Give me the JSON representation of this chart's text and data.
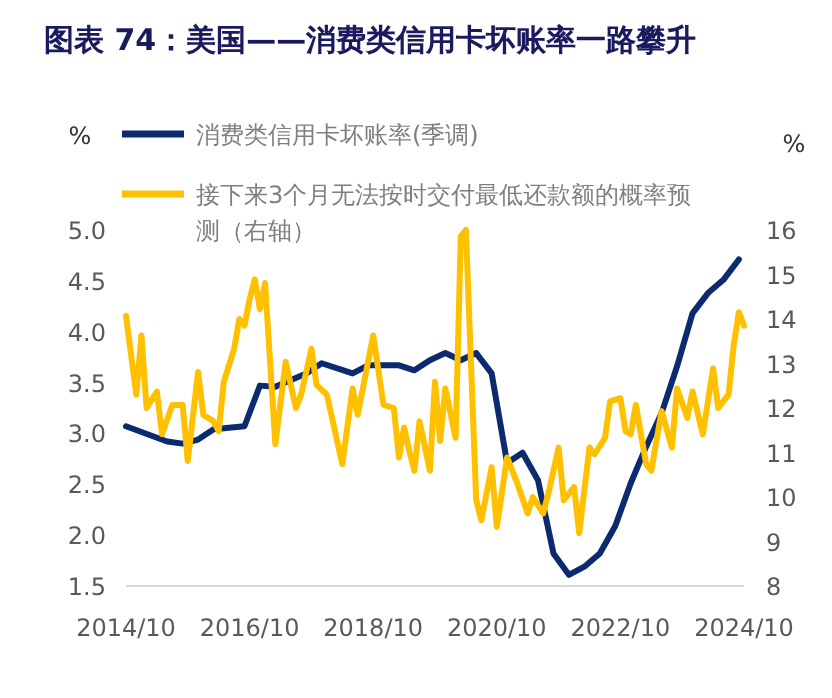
{
  "chart_data": {
    "type": "line",
    "title": "图表 74：美国——消费类信用卡坏账率一路攀升",
    "ylabel": "%",
    "y2label": "%",
    "legend": "top",
    "xlim": [
      "2014-10",
      "2024-10"
    ],
    "xticks": [
      {
        "value": "2014-10",
        "label": "2014/10"
      },
      {
        "value": "2016-10",
        "label": "2016/10"
      },
      {
        "value": "2018-10",
        "label": "2018/10"
      },
      {
        "value": "2020-10",
        "label": "2020/10"
      },
      {
        "value": "2022-10",
        "label": "2022/10"
      },
      {
        "value": "2024-10",
        "label": "2024/10"
      }
    ],
    "ylim": [
      1.5,
      5.0
    ],
    "yticks": [
      {
        "value": 1.5,
        "label": "1.5"
      },
      {
        "value": 2.0,
        "label": "2.0"
      },
      {
        "value": 2.5,
        "label": "2.5"
      },
      {
        "value": 3.0,
        "label": "3.0"
      },
      {
        "value": 3.5,
        "label": "3.5"
      },
      {
        "value": 4.0,
        "label": "4.0"
      },
      {
        "value": 4.5,
        "label": "4.5"
      },
      {
        "value": 5.0,
        "label": "5.0"
      }
    ],
    "y2lim": [
      8,
      16
    ],
    "y2ticks": [
      8,
      9,
      10,
      11,
      12,
      13,
      14,
      15,
      16
    ],
    "series": [
      {
        "name": "消费类信用卡坏账率(季调)",
        "color": "#0b2a6f",
        "x": [
          "2014-10",
          "2015-06",
          "2015-09",
          "2015-12",
          "2016-03",
          "2016-09",
          "2016-12",
          "2017-03",
          "2017-09",
          "2017-12",
          "2018-06",
          "2018-09",
          "2019-03",
          "2019-06",
          "2019-09",
          "2019-12",
          "2020-03",
          "2020-06",
          "2020-09",
          "2020-12",
          "2021-03",
          "2021-06",
          "2021-09",
          "2021-12",
          "2022-03",
          "2022-06",
          "2022-09",
          "2022-12",
          "2023-03",
          "2023-06",
          "2023-09",
          "2023-12",
          "2024-03",
          "2024-06",
          "2024-09"
        ],
        "values": [
          3.07,
          2.92,
          2.9,
          2.94,
          3.04,
          3.07,
          3.47,
          3.46,
          3.59,
          3.69,
          3.59,
          3.67,
          3.67,
          3.62,
          3.72,
          3.79,
          3.72,
          3.79,
          3.59,
          2.71,
          2.81,
          2.54,
          1.82,
          1.61,
          1.69,
          1.82,
          2.09,
          2.51,
          2.87,
          3.2,
          3.66,
          4.18,
          4.38,
          4.51,
          4.71
        ]
      },
      {
        "name": "接下来3个月无法按时交付最低还款额的概率预测（右轴）",
        "color": "#ffc000",
        "axis": "y2",
        "x": [
          "2014-10",
          "2014-12",
          "2015-01",
          "2015-02",
          "2015-04",
          "2015-05",
          "2015-07",
          "2015-09",
          "2015-10",
          "2015-12",
          "2016-01",
          "2016-03",
          "2016-04",
          "2016-05",
          "2016-07",
          "2016-08",
          "2016-09",
          "2016-10",
          "2016-11",
          "2016-12",
          "2017-01",
          "2017-03",
          "2017-05",
          "2017-07",
          "2017-08",
          "2017-10",
          "2017-11",
          "2018-01",
          "2018-04",
          "2018-06",
          "2018-07",
          "2018-10",
          "2018-12",
          "2019-02",
          "2019-03",
          "2019-04",
          "2019-05",
          "2019-06",
          "2019-07",
          "2019-09",
          "2019-10",
          "2019-11",
          "2019-12",
          "2020-02",
          "2020-03",
          "2020-04",
          "2020-06",
          "2020-07",
          "2020-09",
          "2020-10",
          "2020-12",
          "2021-02",
          "2021-04",
          "2021-05",
          "2021-07",
          "2021-08",
          "2021-10",
          "2021-11",
          "2022-01",
          "2022-02",
          "2022-04",
          "2022-05",
          "2022-07",
          "2022-08",
          "2022-10",
          "2022-11",
          "2022-12",
          "2023-01",
          "2023-03",
          "2023-04",
          "2023-06",
          "2023-08",
          "2023-09",
          "2023-11",
          "2023-12",
          "2024-02",
          "2024-04",
          "2024-05",
          "2024-07",
          "2024-08",
          "2024-09",
          "2024-10"
        ],
        "values": [
          14.07,
          12.3,
          13.63,
          12.0,
          12.37,
          11.41,
          12.07,
          12.07,
          10.81,
          12.81,
          11.85,
          11.7,
          11.48,
          12.59,
          13.33,
          14.0,
          13.85,
          14.44,
          14.89,
          14.22,
          14.81,
          11.19,
          13.04,
          12.0,
          12.3,
          13.33,
          12.52,
          12.3,
          10.74,
          12.44,
          11.85,
          13.63,
          12.07,
          12.0,
          10.89,
          11.56,
          11.04,
          10.59,
          11.7,
          10.59,
          12.59,
          11.26,
          12.44,
          11.33,
          15.85,
          16.0,
          9.93,
          9.48,
          10.67,
          9.33,
          10.89,
          10.3,
          9.63,
          10.0,
          9.63,
          10.07,
          11.11,
          9.93,
          10.22,
          9.19,
          11.11,
          10.96,
          11.33,
          12.15,
          12.22,
          11.48,
          11.41,
          12.07,
          10.74,
          10.59,
          11.93,
          11.11,
          12.44,
          11.78,
          12.37,
          11.41,
          12.89,
          12.0,
          12.3,
          13.41,
          14.15,
          13.85
        ]
      }
    ]
  }
}
